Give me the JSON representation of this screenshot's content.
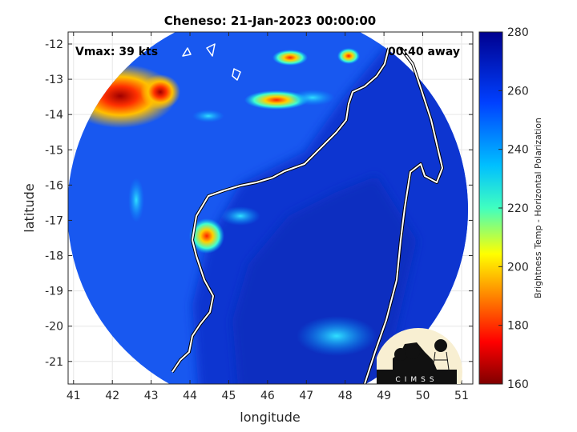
{
  "title": "Cheneso: 21-Jan-2023 00:00:00",
  "annotations": {
    "vmax": "Vmax: 39 kts",
    "away": "00:40 away"
  },
  "logo_text": "CIMSS",
  "chart_data": {
    "type": "heatmap",
    "title": "Cheneso: 21-Jan-2023 00:00:00",
    "xlabel": "longitude",
    "ylabel": "latitude",
    "xlim": [
      40.86,
      51.29
    ],
    "ylim": [
      -21.64,
      -11.66
    ],
    "xticks": [
      "41",
      "42",
      "43",
      "44",
      "45",
      "46",
      "47",
      "48",
      "49",
      "50",
      "51"
    ],
    "yticks": [
      "-12",
      "-13",
      "-14",
      "-15",
      "-16",
      "-17",
      "-18",
      "-19",
      "-20",
      "-21"
    ],
    "grid": true,
    "colorbar": {
      "label": "Brightness Temp - Horizontal Polarization",
      "range": [
        160,
        280
      ],
      "ticks": [
        "280",
        "260",
        "240",
        "220",
        "200",
        "180",
        "160"
      ],
      "colormap": [
        "#800000",
        "#ff0000",
        "#ffff00",
        "#00ffff",
        "#0040ff",
        "#000090"
      ]
    },
    "features": [
      {
        "name": "cold cloud cluster",
        "lon": 42.9,
        "lat": -13.5,
        "min_temp": 175
      },
      {
        "name": "cold cloud band",
        "lon": 44.4,
        "lat": -17.6,
        "min_temp": 185
      },
      {
        "name": "convection",
        "lon": 46.2,
        "lat": -13.6,
        "min_temp": 200
      },
      {
        "name": "convection",
        "lon": 46.7,
        "lat": -12.4,
        "min_temp": 205
      }
    ]
  }
}
